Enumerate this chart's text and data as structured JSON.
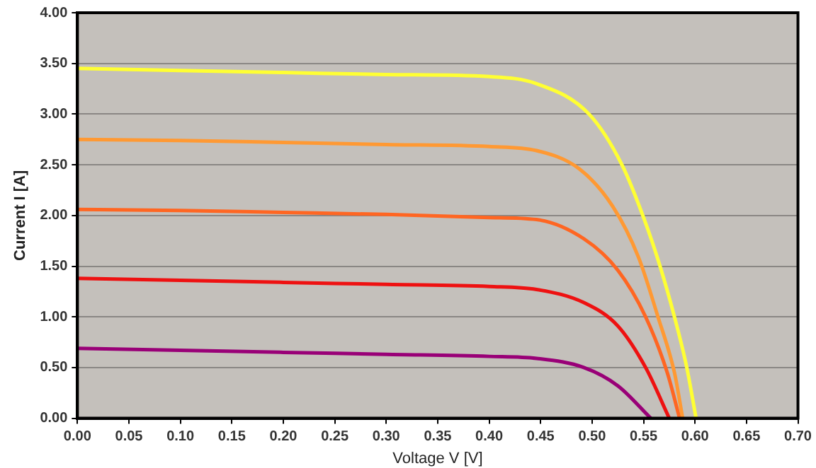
{
  "chart_data": {
    "type": "line",
    "xlabel": "Voltage V [V]",
    "ylabel": "Current I [A]",
    "xlim": [
      0,
      0.7
    ],
    "ylim": [
      0,
      4
    ],
    "xticks": [
      {
        "value": 0,
        "label": "0.00"
      },
      {
        "value": 0.05,
        "label": "0.05"
      },
      {
        "value": 0.1,
        "label": "0.10"
      },
      {
        "value": 0.15,
        "label": "0.15"
      },
      {
        "value": 0.2,
        "label": "0.20"
      },
      {
        "value": 0.25,
        "label": "0.25"
      },
      {
        "value": 0.3,
        "label": "0.30"
      },
      {
        "value": 0.35,
        "label": "0.35"
      },
      {
        "value": 0.4,
        "label": "0.40"
      },
      {
        "value": 0.45,
        "label": "0.45"
      },
      {
        "value": 0.5,
        "label": "0.50"
      },
      {
        "value": 0.55,
        "label": "0.55"
      },
      {
        "value": 0.6,
        "label": "0.60"
      },
      {
        "value": 0.65,
        "label": "0.65"
      },
      {
        "value": 0.7,
        "label": "0.70"
      }
    ],
    "yticks": [
      {
        "value": 0,
        "label": "0.00"
      },
      {
        "value": 0.5,
        "label": "0.50"
      },
      {
        "value": 1,
        "label": "1.00"
      },
      {
        "value": 1.5,
        "label": "1.50"
      },
      {
        "value": 2,
        "label": "2.00"
      },
      {
        "value": 2.5,
        "label": "2.50"
      },
      {
        "value": 3,
        "label": "3.00"
      },
      {
        "value": 3.5,
        "label": "3.50"
      },
      {
        "value": 4,
        "label": "4.00"
      }
    ],
    "grid": "y",
    "legend": false,
    "marker": "none",
    "line_style": "solid",
    "series": [
      {
        "color": "#ffff33",
        "x": [
          0,
          0.1,
          0.2,
          0.3,
          0.4,
          0.446,
          0.497,
          0.529,
          0.55,
          0.566,
          0.58,
          0.592,
          0.601
        ],
        "values": [
          3.45,
          3.43,
          3.41,
          3.39,
          3.37,
          3.3,
          3.0,
          2.5,
          1.98,
          1.5,
          1.0,
          0.5,
          0
        ]
      },
      {
        "color": "#ff9933",
        "x": [
          0,
          0.1,
          0.2,
          0.3,
          0.4,
          0.446,
          0.4875,
          0.52,
          0.545,
          0.564,
          0.58,
          0.588
        ],
        "values": [
          2.75,
          2.74,
          2.72,
          2.7,
          2.68,
          2.64,
          2.46,
          2.09,
          1.59,
          1.0,
          0.45,
          0
        ]
      },
      {
        "color": "#ff6622",
        "x": [
          0,
          0.1,
          0.2,
          0.3,
          0.4,
          0.446,
          0.492,
          0.525,
          0.552,
          0.573,
          0.585
        ],
        "values": [
          2.06,
          2.05,
          2.03,
          2.01,
          1.98,
          1.96,
          1.77,
          1.46,
          1.0,
          0.45,
          0
        ]
      },
      {
        "color": "#ee1111",
        "x": [
          0,
          0.1,
          0.2,
          0.3,
          0.4,
          0.446,
          0.492,
          0.525,
          0.552,
          0.575
        ],
        "values": [
          1.38,
          1.36,
          1.34,
          1.32,
          1.3,
          1.27,
          1.14,
          0.91,
          0.5,
          0
        ]
      },
      {
        "color": "#990077",
        "x": [
          0,
          0.1,
          0.2,
          0.3,
          0.4,
          0.446,
          0.492,
          0.525,
          0.557
        ],
        "values": [
          0.69,
          0.67,
          0.65,
          0.63,
          0.61,
          0.59,
          0.5,
          0.32,
          0
        ]
      }
    ]
  }
}
